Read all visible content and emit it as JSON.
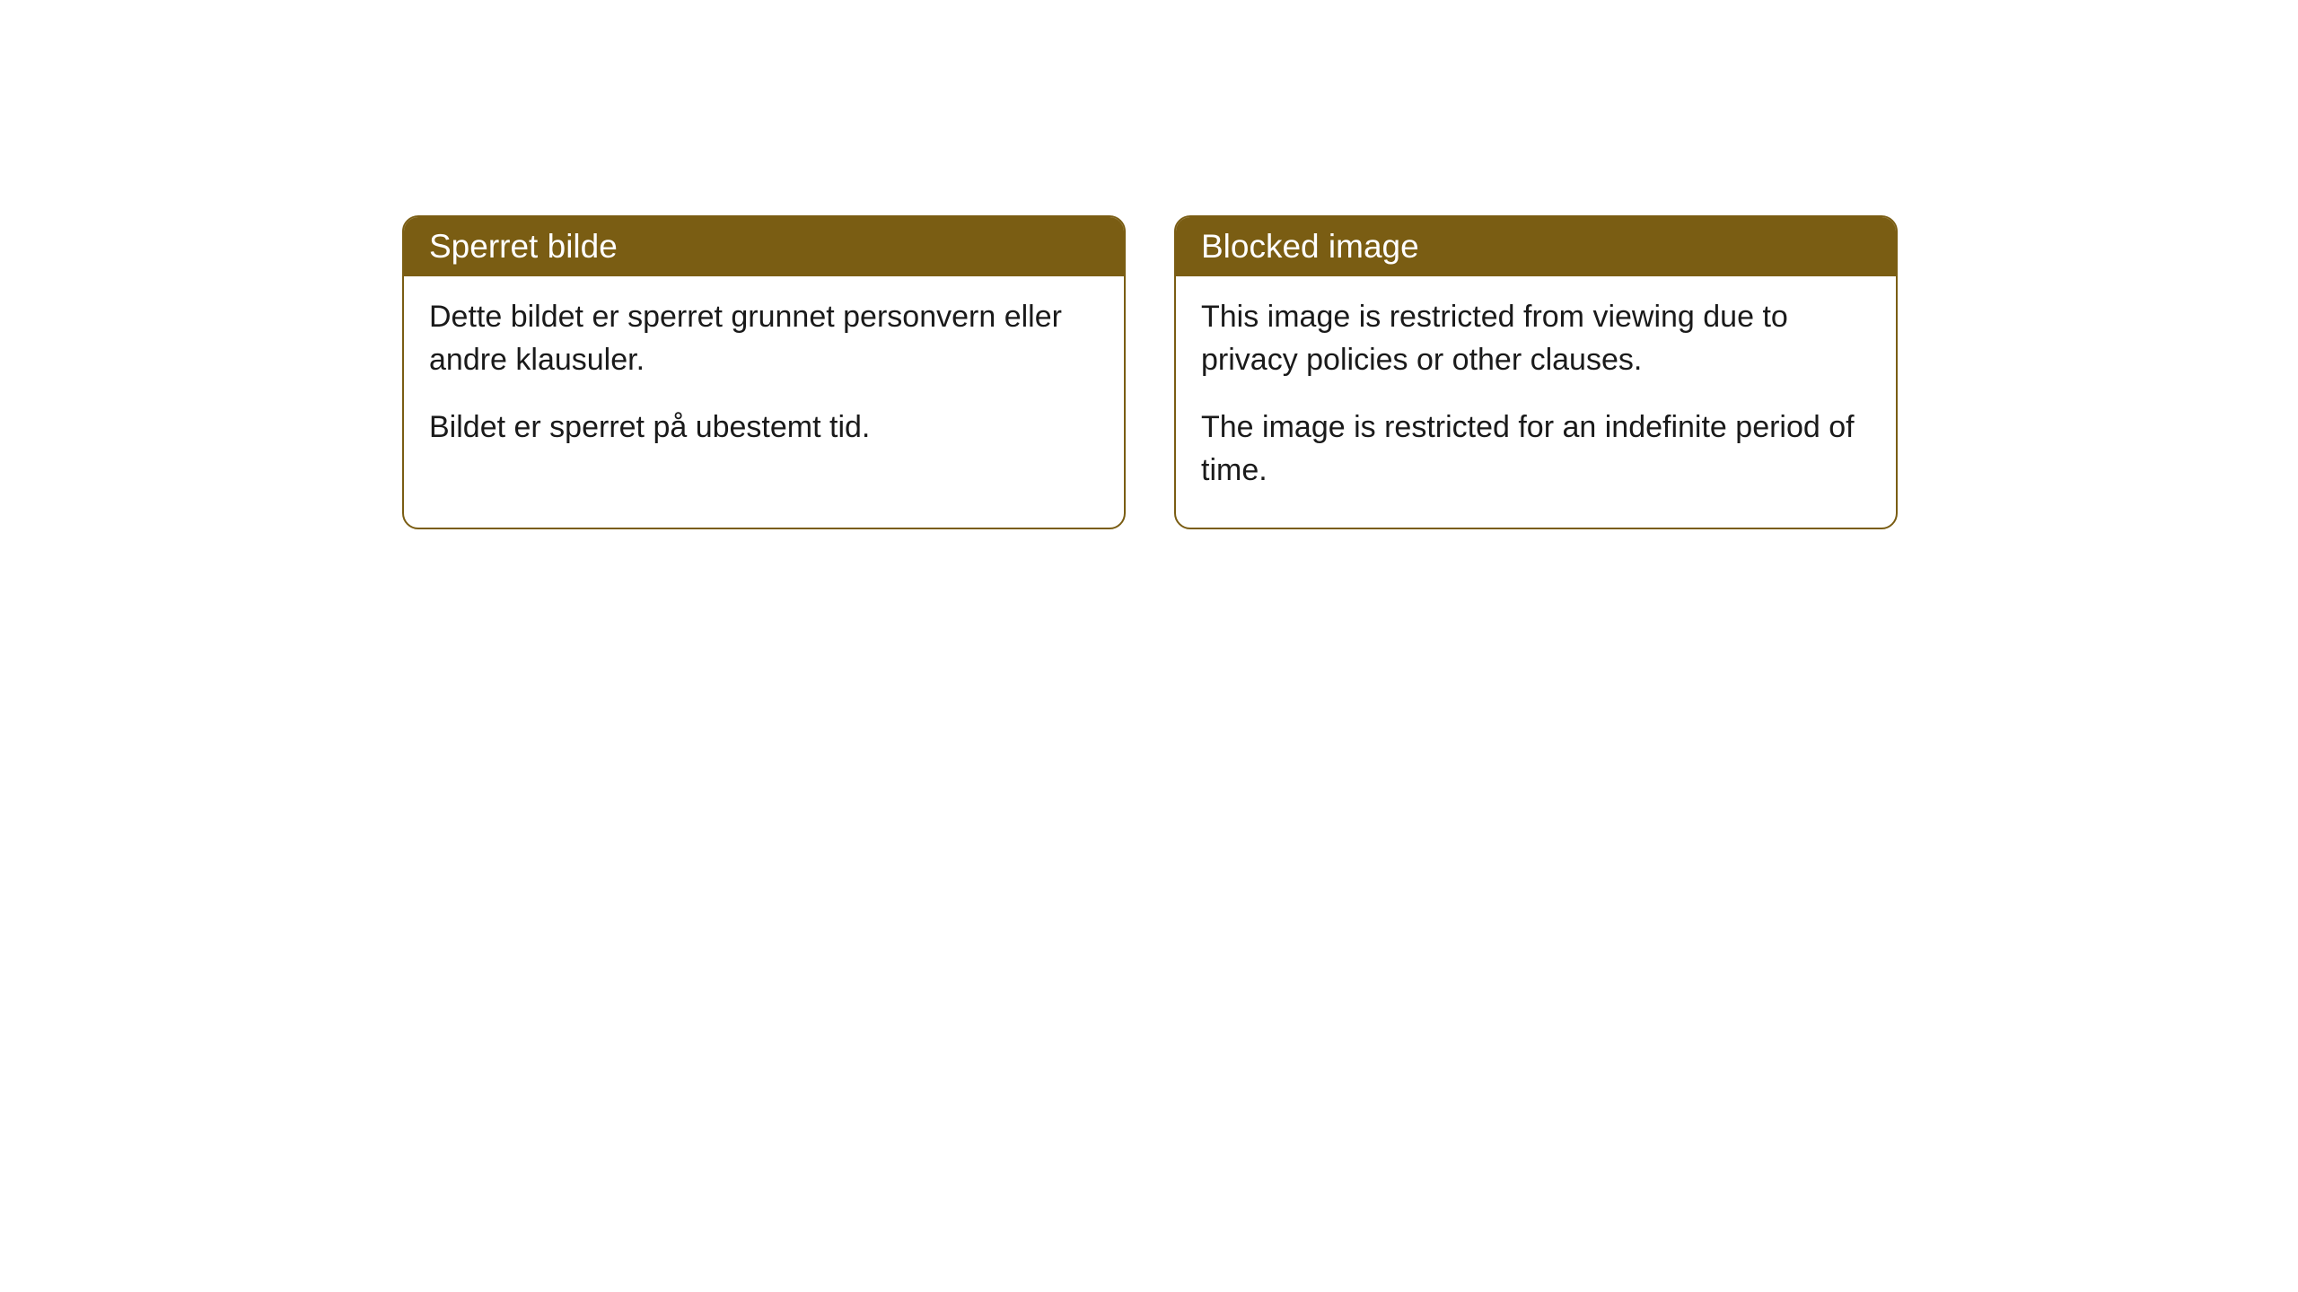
{
  "cards": [
    {
      "title": "Sperret bilde",
      "paragraph1": "Dette bildet er sperret grunnet personvern eller andre klausuler.",
      "paragraph2": "Bildet er sperret på ubestemt tid."
    },
    {
      "title": "Blocked image",
      "paragraph1": "This image is restricted from viewing due to privacy policies or other clauses.",
      "paragraph2": "The image is restricted for an indefinite period of time."
    }
  ],
  "style": {
    "header_background_color": "#7a5d13",
    "header_text_color": "#ffffff",
    "border_color": "#7a5d13",
    "body_background_color": "#ffffff",
    "body_text_color": "#1a1a1a",
    "border_radius": 18,
    "title_fontsize": 37,
    "body_fontsize": 34
  }
}
